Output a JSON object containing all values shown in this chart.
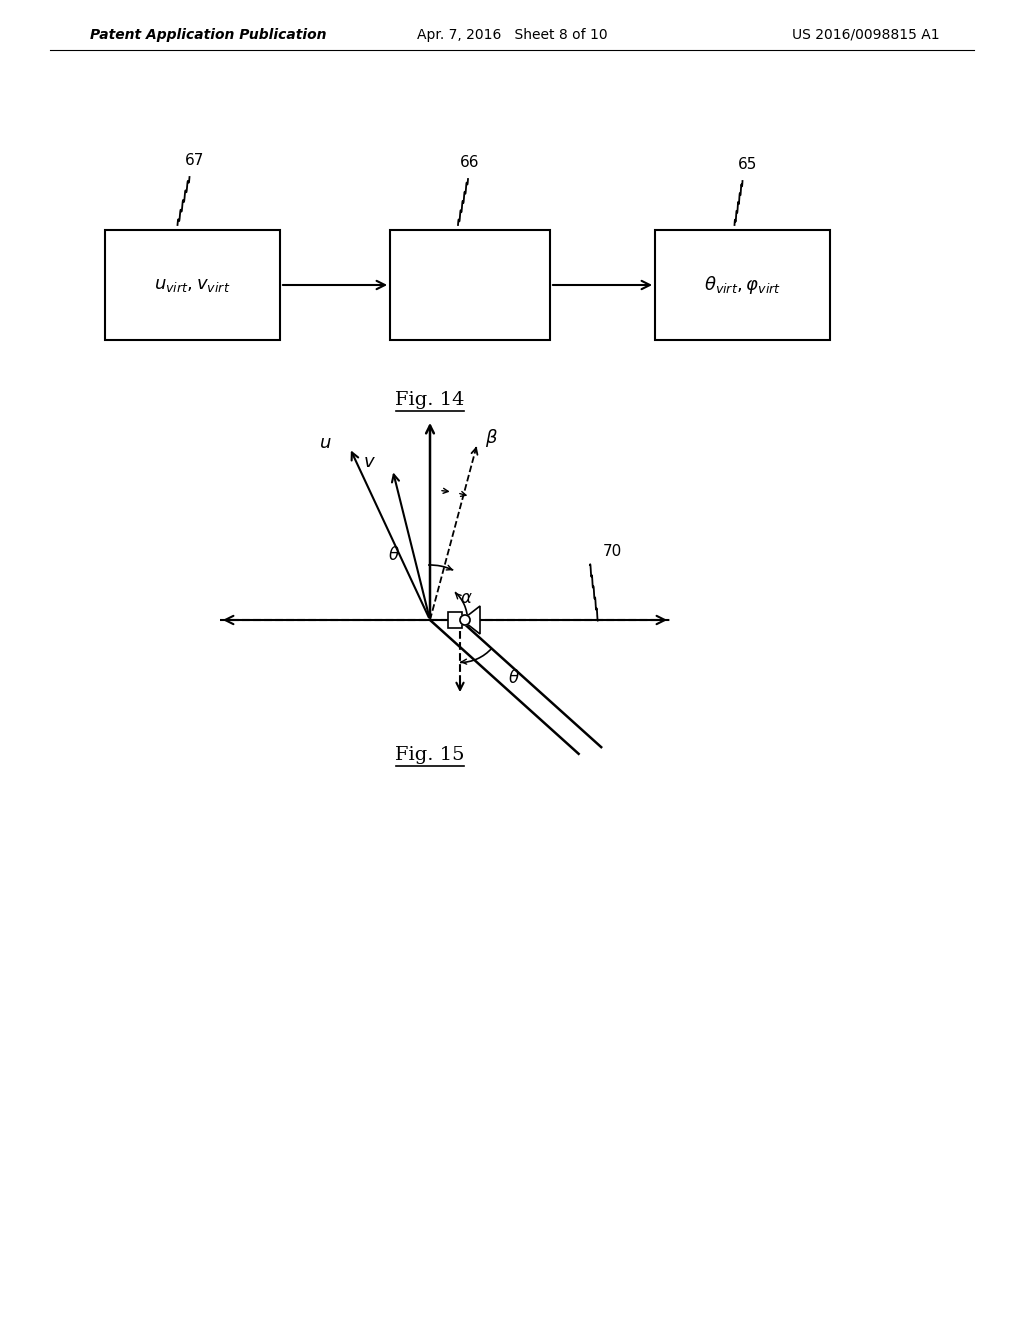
{
  "bg_color": "#ffffff",
  "header_left": "Patent Application Publication",
  "header_mid": "Apr. 7, 2016   Sheet 8 of 10",
  "header_right": "US 2016/0098815 A1",
  "fig14_title": "Fig. 14",
  "fig15_title": "Fig. 15",
  "box1_label": "$u_{virt}, v_{virt}$",
  "box2_label": "",
  "box3_label": "$\\theta_{virt}, \\varphi_{virt}$",
  "box1_id": "67",
  "box2_id": "66",
  "box3_id": "65",
  "label_u": "u",
  "label_v": "v",
  "label_beta": "β",
  "label_theta": "θ",
  "label_alpha": "α",
  "label_theta2": "θ",
  "label_70": "70"
}
